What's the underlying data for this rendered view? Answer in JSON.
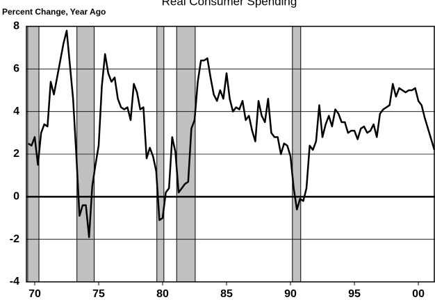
{
  "chart_data": {
    "type": "line",
    "title": "Real Consumer Spending",
    "ylabel": "Percent Change, Year Ago",
    "x": [
      1969.5,
      1969.75,
      1970,
      1970.25,
      1970.5,
      1970.75,
      1971,
      1971.25,
      1971.5,
      1971.75,
      1972,
      1972.25,
      1972.5,
      1972.75,
      1973,
      1973.25,
      1973.5,
      1973.75,
      1974,
      1974.25,
      1974.5,
      1974.75,
      1975,
      1975.25,
      1975.5,
      1975.75,
      1976,
      1976.25,
      1976.5,
      1976.75,
      1977,
      1977.25,
      1977.5,
      1977.75,
      1978,
      1978.25,
      1978.5,
      1978.75,
      1979,
      1979.25,
      1979.5,
      1979.75,
      1980,
      1980.25,
      1980.5,
      1980.75,
      1981,
      1981.25,
      1981.5,
      1981.75,
      1982,
      1982.25,
      1982.5,
      1982.75,
      1983,
      1983.25,
      1983.5,
      1983.75,
      1984,
      1984.25,
      1984.5,
      1984.75,
      1985,
      1985.25,
      1985.5,
      1985.75,
      1986,
      1986.25,
      1986.5,
      1986.75,
      1987,
      1987.25,
      1987.5,
      1987.75,
      1988,
      1988.25,
      1988.5,
      1988.75,
      1989,
      1989.25,
      1989.5,
      1989.75,
      1990,
      1990.25,
      1990.5,
      1990.75,
      1991,
      1991.25,
      1991.5,
      1991.75,
      1992,
      1992.25,
      1992.5,
      1992.75,
      1993,
      1993.25,
      1993.5,
      1993.75,
      1994,
      1994.25,
      1994.5,
      1994.75,
      1995,
      1995.25,
      1995.5,
      1995.75,
      1996,
      1996.25,
      1996.5,
      1996.75,
      1997,
      1997.25,
      1997.5,
      1997.75,
      1998,
      1998.25,
      1998.5,
      1998.75,
      1999,
      1999.25,
      1999.5,
      1999.75,
      2000,
      2000.25,
      2000.5,
      2000.75,
      2001,
      2001.25
    ],
    "series": [
      {
        "name": "Real Consumer Spending",
        "color": "#000000",
        "values": [
          2.5,
          2.4,
          2.8,
          1.5,
          3.0,
          3.4,
          3.3,
          5.4,
          4.8,
          5.6,
          6.4,
          7.2,
          7.8,
          6.2,
          4.6,
          2.0,
          -0.9,
          -0.4,
          -0.4,
          -1.9,
          0.5,
          1.5,
          2.4,
          5.2,
          6.7,
          5.8,
          5.4,
          5.6,
          4.6,
          4.2,
          4.1,
          4.2,
          3.6,
          5.3,
          4.9,
          4.1,
          4.2,
          1.8,
          2.3,
          1.9,
          1.2,
          -1.1,
          -1.0,
          0.2,
          0.4,
          2.8,
          2.1,
          0.2,
          0.4,
          0.6,
          0.7,
          3.2,
          3.6,
          5.4,
          6.4,
          6.4,
          6.5,
          5.6,
          4.8,
          4.5,
          5.0,
          4.6,
          5.8,
          4.6,
          4.0,
          4.2,
          4.1,
          4.5,
          3.6,
          3.8,
          3.1,
          2.6,
          4.5,
          3.8,
          3.5,
          4.6,
          3.0,
          2.8,
          2.8,
          2.0,
          2.5,
          2.4,
          1.9,
          0.4,
          -0.6,
          -0.1,
          -0.2,
          0.4,
          2.4,
          2.2,
          2.6,
          4.3,
          2.8,
          3.4,
          3.8,
          3.3,
          4.1,
          3.9,
          3.5,
          3.5,
          3.0,
          3.1,
          3.1,
          2.7,
          3.2,
          3.3,
          3.0,
          3.1,
          3.4,
          2.8,
          3.9,
          4.1,
          4.2,
          4.3,
          5.3,
          4.7,
          5.1,
          5.0,
          4.9,
          5.0,
          5.0,
          5.1,
          4.5,
          4.3,
          3.7,
          3.2,
          2.7,
          2.2
        ]
      }
    ],
    "recessions": [
      [
        1969.45,
        1970.33
      ],
      [
        1973.3,
        1974.65
      ],
      [
        1979.55,
        1980.1
      ],
      [
        1981.1,
        1982.55
      ],
      [
        1990.15,
        1990.8
      ]
    ],
    "recession_color": "#c0c0c0",
    "xlim": [
      1969.35,
      2001.3
    ],
    "xticks": [
      {
        "value": 1970,
        "label": "70"
      },
      {
        "value": 1975,
        "label": "75"
      },
      {
        "value": 1980,
        "label": "80"
      },
      {
        "value": 1985,
        "label": "85"
      },
      {
        "value": 1990,
        "label": "90"
      },
      {
        "value": 1995,
        "label": "95"
      },
      {
        "value": 2000,
        "label": "00"
      }
    ],
    "ylim": [
      -4,
      8
    ],
    "yticks": [
      -4,
      -2,
      0,
      2,
      4,
      6,
      8
    ],
    "grid": true
  }
}
